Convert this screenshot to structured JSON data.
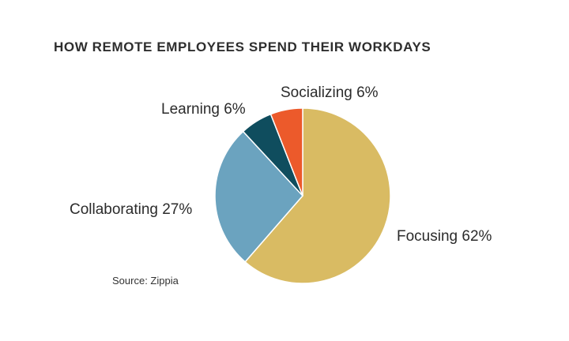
{
  "chart_data": {
    "type": "pie",
    "title": "HOW REMOTE EMPLOYEES SPEND THEIR WORKDAYS",
    "source": "Source: Zippia",
    "slices": [
      {
        "label": "Focusing",
        "value": 62,
        "display": "Focusing 62%",
        "color": "#d9bb63"
      },
      {
        "label": "Collaborating",
        "value": 27,
        "display": "Collaborating 27%",
        "color": "#6ba3bf"
      },
      {
        "label": "Learning",
        "value": 6,
        "display": "Learning 6%",
        "color": "#0f4d5e"
      },
      {
        "label": "Socializing",
        "value": 6,
        "display": "Socializing 6%",
        "color": "#ec5a2b"
      }
    ]
  }
}
